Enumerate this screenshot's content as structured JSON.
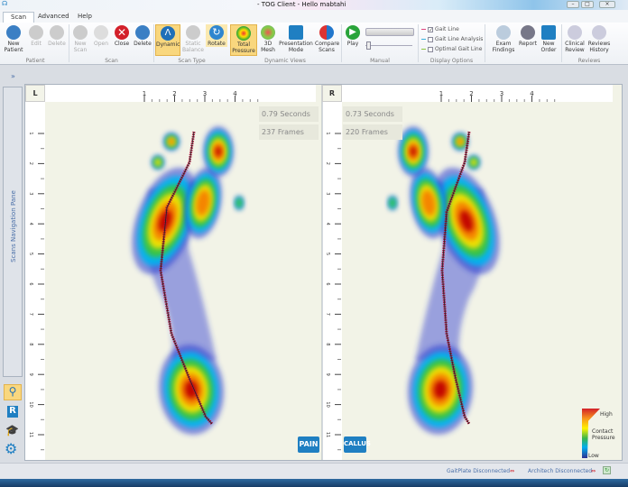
{
  "window": {
    "title": "- TOG Client - Hello mabtahi"
  },
  "tabs": [
    {
      "label": "Scan",
      "active": true
    },
    {
      "label": "Advanced"
    },
    {
      "label": "Help"
    }
  ],
  "ribbon": {
    "groups": [
      "Patient",
      "Scan",
      "Scan Type",
      "Dynamic Views",
      "Manual",
      "Display Options",
      "Reviews"
    ],
    "buttons": {
      "new_patient": "New Patient",
      "edit": "Edit",
      "delete_patient": "Delete",
      "new_scan": "New Scan",
      "open": "Open",
      "close": "Close",
      "delete_scan": "Delete",
      "dynamic": "Dynamic",
      "static_balance": "Static Balance",
      "rotate": "Rotate",
      "total_pressure": "Total Pressure",
      "mesh_3d": "3D Mesh",
      "presentation_mode": "Presentation Mode",
      "compare_scans": "Compare Scans",
      "play": "Play",
      "exam_findings": "Exam Findings",
      "report": "Report",
      "new_order": "New Order",
      "clinical_review": "Clinical Review",
      "reviews_history": "Reviews History"
    },
    "display_options": [
      {
        "label": "Gait Line",
        "checked": true,
        "color": "#e0457f"
      },
      {
        "label": "Gait Line Analysis",
        "checked": false,
        "color": "#3bb3e0"
      },
      {
        "label": "Optimal Gait Line",
        "checked": false,
        "color": "#8cc63f"
      }
    ]
  },
  "nav": {
    "expand": "»",
    "label": "Scans Navigation Pane"
  },
  "left": {
    "side": "L",
    "seconds": "0.79 Seconds",
    "frames": "237 Frames",
    "tag": "PAIN"
  },
  "right": {
    "side": "R",
    "seconds": "0.73 Seconds",
    "frames": "220 Frames",
    "tag": "CALLUS"
  },
  "ruler": {
    "h": [
      "1",
      "2",
      "3",
      "4"
    ],
    "v": [
      "1",
      "2",
      "3",
      "4",
      "5",
      "6",
      "7",
      "8",
      "9",
      "10",
      "11"
    ]
  },
  "legend": {
    "high": "High",
    "title": "Contact Pressure",
    "low": "Low"
  },
  "status": {
    "gaitplate": "GaitPlate Disconnected",
    "architech": "Architech Disconnected",
    "disconnected_color": "#d0202a"
  }
}
